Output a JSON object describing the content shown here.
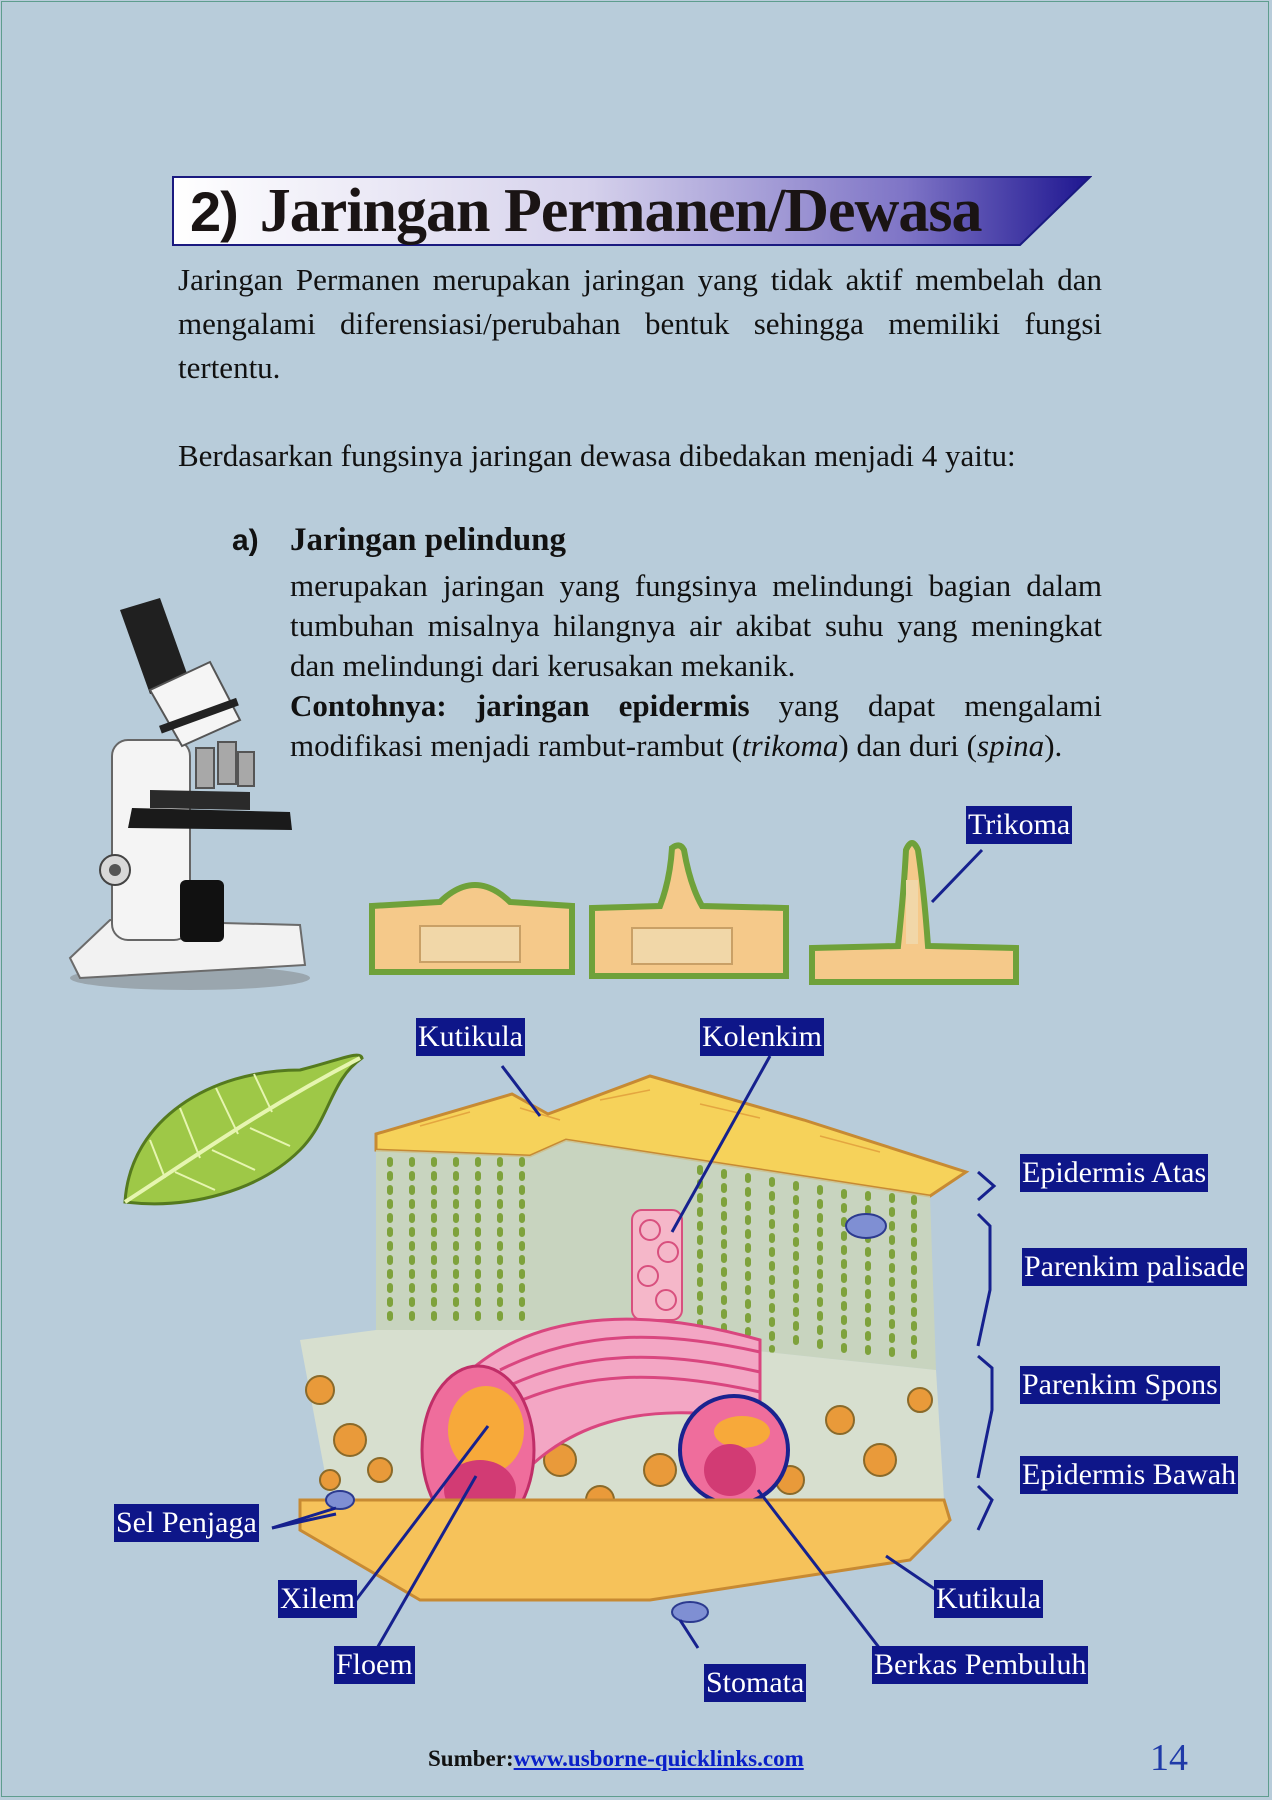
{
  "title": {
    "number": "2)",
    "text": "Jaringan Permanen/Dewasa"
  },
  "intro": "Jaringan Permanen merupakan jaringan yang tidak aktif membelah dan mengalami diferensiasi/perubahan bentuk sehingga memiliki fungsi tertentu.",
  "classification": "Berdasarkan fungsinya jaringan dewasa dibedakan menjadi 4 yaitu:",
  "section_a": {
    "letter": "a)",
    "heading": "Jaringan pelindung",
    "description": "merupakan jaringan yang fungsinya melindungi bagian dalam tumbuhan misalnya hilangnya air akibat suhu yang meningkat dan melindungi dari kerusakan mekanik.",
    "example_label": "Contohnya: jaringan epidermis",
    "example_text_1": " yang dapat mengalami modifikasi menjadi rambut-rambut (",
    "example_italic_1": "trikoma",
    "example_text_2": ") dan duri (",
    "example_italic_2": "spina",
    "example_text_3": ")."
  },
  "labels": {
    "trikoma": "Trikoma",
    "kutikula_top": "Kutikula",
    "kolenkim": "Kolenkim",
    "epidermis_atas": "Epidermis Atas",
    "parenkim_palisade": "Parenkim palisade",
    "parenkim_spons": "Parenkim Spons",
    "epidermis_bawah": "Epidermis Bawah",
    "sel_penjaga": "Sel Penjaga",
    "xilem": "Xilem",
    "floem": "Floem",
    "stomata": "Stomata",
    "kutikula_bottom": "Kutikula",
    "berkas_pembuluh": "Berkas Pembuluh"
  },
  "footer": {
    "source_label": "Sumber:",
    "source_link": "www.usborne-quicklinks.com"
  },
  "page_number": "14",
  "colors": {
    "background": "#b8ccda",
    "label_bg": "#0e1689",
    "link": "#0a20c8",
    "page_number": "#1f3aa8"
  }
}
